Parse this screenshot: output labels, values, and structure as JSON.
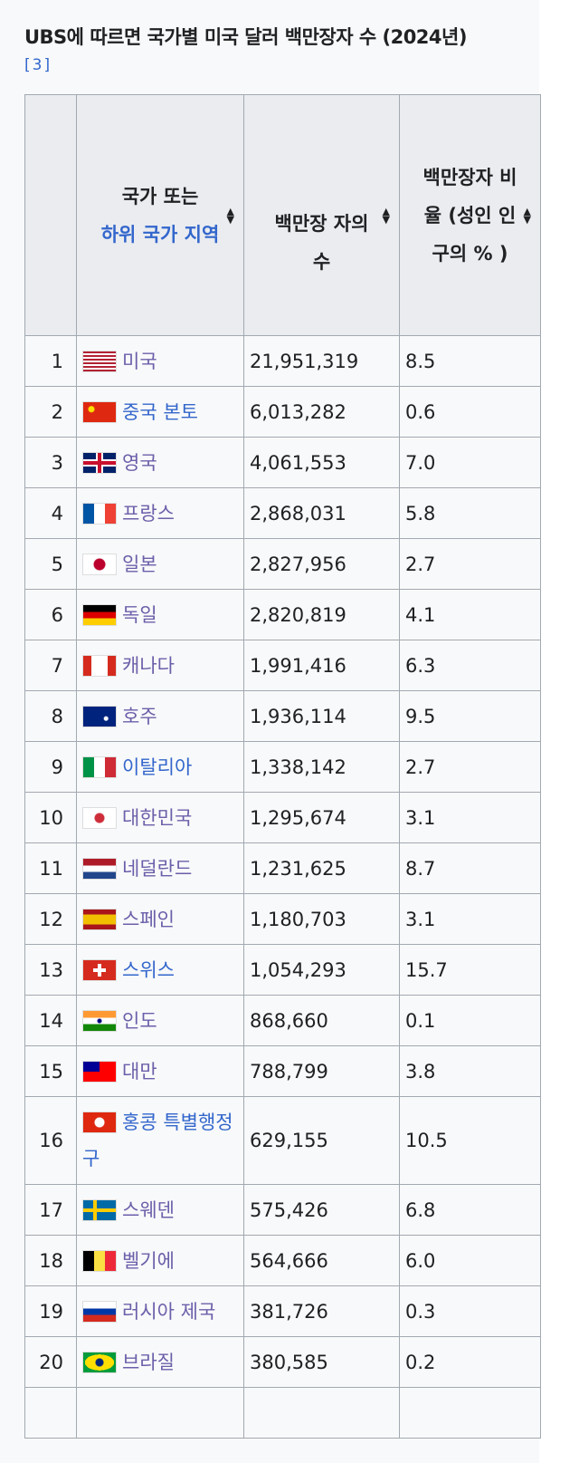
{
  "caption": "UBS에 따르면 국가별 미국 달러 백만장자 수 (2024년)",
  "ref": "[3]",
  "headers": {
    "country_pre": "국가 또는",
    "country_link": "하위 국가 지역",
    "count": "백만장 자의 수",
    "ratio": "백만장자 비율 (성인 인구의 % )"
  },
  "rows": [
    {
      "rank": "1",
      "country": "미국",
      "flag": "us",
      "count": "21,951,319",
      "ratio": "8.5",
      "visited": true
    },
    {
      "rank": "2",
      "country": "중국 본토",
      "flag": "cn",
      "count": "6,013,282",
      "ratio": "0.6",
      "visited": false
    },
    {
      "rank": "3",
      "country": "영국",
      "flag": "gb",
      "count": "4,061,553",
      "ratio": "7.0",
      "visited": true
    },
    {
      "rank": "4",
      "country": "프랑스",
      "flag": "fr",
      "count": "2,868,031",
      "ratio": "5.8",
      "visited": true
    },
    {
      "rank": "5",
      "country": "일본",
      "flag": "jp",
      "count": "2,827,956",
      "ratio": "2.7",
      "visited": true
    },
    {
      "rank": "6",
      "country": "독일",
      "flag": "de",
      "count": "2,820,819",
      "ratio": "4.1",
      "visited": true
    },
    {
      "rank": "7",
      "country": "캐나다",
      "flag": "ca",
      "count": "1,991,416",
      "ratio": "6.3",
      "visited": true
    },
    {
      "rank": "8",
      "country": "호주",
      "flag": "au",
      "count": "1,936,114",
      "ratio": "9.5",
      "visited": true
    },
    {
      "rank": "9",
      "country": "이탈리아",
      "flag": "it",
      "count": "1,338,142",
      "ratio": "2.7",
      "visited": false
    },
    {
      "rank": "10",
      "country": "대한민국",
      "flag": "kr",
      "count": "1,295,674",
      "ratio": "3.1",
      "visited": true
    },
    {
      "rank": "11",
      "country": "네덜란드",
      "flag": "nl",
      "count": "1,231,625",
      "ratio": "8.7",
      "visited": true
    },
    {
      "rank": "12",
      "country": "스페인",
      "flag": "es",
      "count": "1,180,703",
      "ratio": "3.1",
      "visited": true
    },
    {
      "rank": "13",
      "country": "스위스",
      "flag": "ch",
      "count": "1,054,293",
      "ratio": "15.7",
      "visited": false
    },
    {
      "rank": "14",
      "country": "인도",
      "flag": "in",
      "count": "868,660",
      "ratio": "0.1",
      "visited": true
    },
    {
      "rank": "15",
      "country": "대만",
      "flag": "tw",
      "count": "788,799",
      "ratio": "3.8",
      "visited": true
    },
    {
      "rank": "16",
      "country": "홍콩 특별행정구",
      "flag": "hk",
      "count": "629,155",
      "ratio": "10.5",
      "visited": false
    },
    {
      "rank": "17",
      "country": "스웨덴",
      "flag": "se",
      "count": "575,426",
      "ratio": "6.8",
      "visited": true
    },
    {
      "rank": "18",
      "country": "벨기에",
      "flag": "be",
      "count": "564,666",
      "ratio": "6.0",
      "visited": true
    },
    {
      "rank": "19",
      "country": "러시아 제국",
      "flag": "ru",
      "count": "381,726",
      "ratio": "0.3",
      "visited": true
    },
    {
      "rank": "20",
      "country": "브라질",
      "flag": "br",
      "count": "380,585",
      "ratio": "0.2",
      "visited": true
    }
  ]
}
